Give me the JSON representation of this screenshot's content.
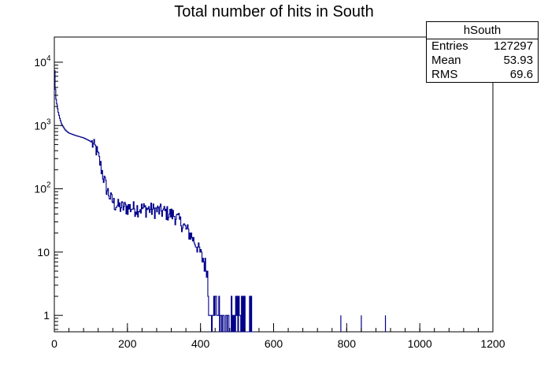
{
  "chart_data": {
    "type": "histogram",
    "title": "Total number of hits in South",
    "xlabel": "",
    "ylabel": "",
    "xlim": [
      0,
      1200
    ],
    "ylim": [
      0.55,
      25000
    ],
    "yscale": "log",
    "line_color": "#00008b",
    "x_ticks": [
      {
        "value": 0,
        "label": "0"
      },
      {
        "value": 200,
        "label": "200"
      },
      {
        "value": 400,
        "label": "400"
      },
      {
        "value": 600,
        "label": "600"
      },
      {
        "value": 800,
        "label": "800"
      },
      {
        "value": 1000,
        "label": "1000"
      },
      {
        "value": 1200,
        "label": "1200"
      }
    ],
    "y_ticks": [
      {
        "value": 1,
        "label": "1",
        "sup": ""
      },
      {
        "value": 10,
        "label": "10",
        "sup": ""
      },
      {
        "value": 100,
        "label": "10",
        "sup": "2"
      },
      {
        "value": 1000,
        "label": "10",
        "sup": "3"
      },
      {
        "value": 10000,
        "label": "10",
        "sup": "4"
      }
    ],
    "profile": [
      [
        0,
        12000
      ],
      [
        2,
        4500
      ],
      [
        5,
        2600
      ],
      [
        10,
        1700
      ],
      [
        15,
        1300
      ],
      [
        20,
        1050
      ],
      [
        30,
        850
      ],
      [
        40,
        760
      ],
      [
        60,
        690
      ],
      [
        80,
        640
      ],
      [
        100,
        560
      ],
      [
        115,
        420
      ],
      [
        125,
        260
      ],
      [
        135,
        150
      ],
      [
        145,
        95
      ],
      [
        155,
        70
      ],
      [
        165,
        58
      ],
      [
        180,
        52
      ],
      [
        220,
        50
      ],
      [
        260,
        48
      ],
      [
        300,
        44
      ],
      [
        330,
        38
      ],
      [
        350,
        28
      ],
      [
        370,
        20
      ],
      [
        390,
        13
      ],
      [
        410,
        7
      ],
      [
        425,
        4
      ],
      [
        440,
        2.5
      ],
      [
        460,
        1.5
      ],
      [
        480,
        1.1
      ],
      [
        500,
        1
      ],
      [
        540,
        1
      ]
    ],
    "isolated_entries": [
      {
        "x": 784,
        "value": 1
      },
      {
        "x": 840,
        "value": 1
      },
      {
        "x": 906,
        "value": 1
      }
    ],
    "stats": {
      "name": "hSouth",
      "rows": [
        {
          "label": "Entries",
          "value": "127297"
        },
        {
          "label": "Mean",
          "value": "53.93"
        },
        {
          "label": "RMS",
          "value": "69.6"
        }
      ]
    }
  }
}
